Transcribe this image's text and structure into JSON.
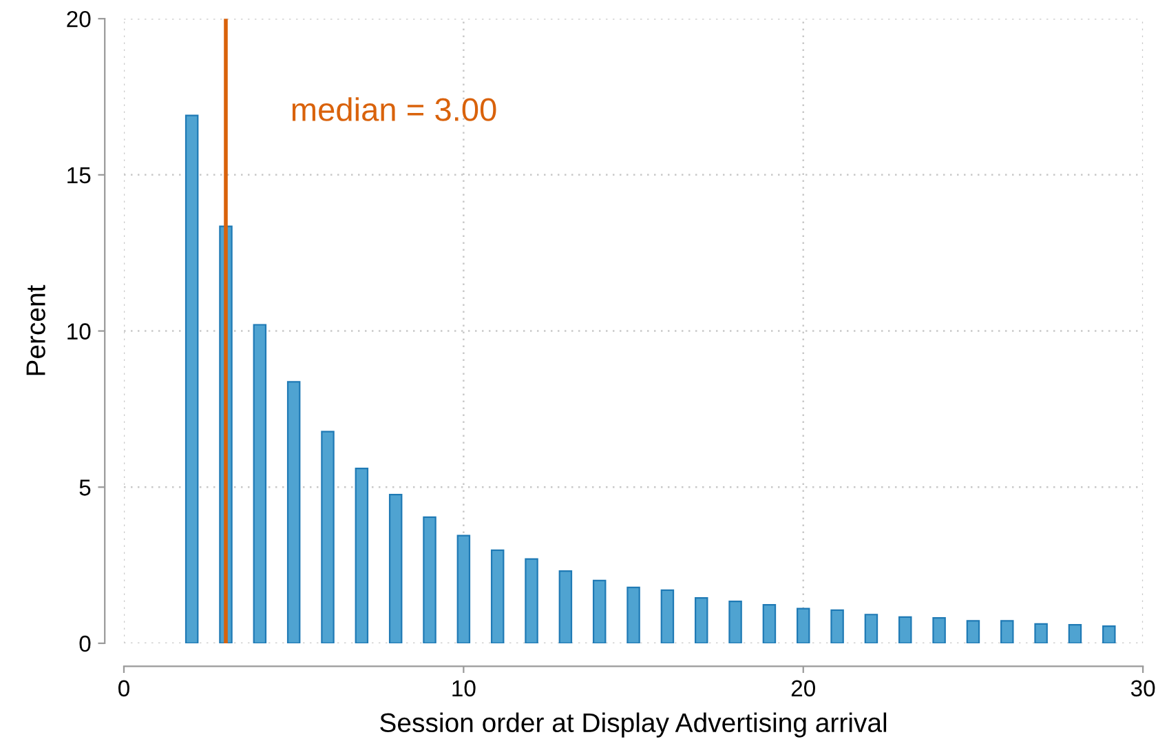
{
  "chart_data": {
    "type": "bar",
    "xlabel": "Session order at Display Advertising arrival",
    "ylabel": "Percent",
    "x": [
      2,
      3,
      4,
      5,
      6,
      7,
      8,
      9,
      10,
      11,
      12,
      13,
      14,
      15,
      16,
      17,
      18,
      19,
      20,
      21,
      22,
      23,
      24,
      25,
      26,
      27,
      28,
      29
    ],
    "values": [
      16.9,
      13.35,
      10.2,
      8.37,
      6.78,
      5.6,
      4.76,
      4.04,
      3.45,
      2.98,
      2.7,
      2.31,
      2.01,
      1.79,
      1.7,
      1.45,
      1.34,
      1.23,
      1.11,
      1.06,
      0.92,
      0.84,
      0.81,
      0.72,
      0.72,
      0.62,
      0.59,
      0.55
    ],
    "color": "#4fa3d1",
    "xlim": [
      0,
      30
    ],
    "xticks": [
      0,
      10,
      20,
      30
    ],
    "ylim": [
      0,
      20
    ],
    "yticks": [
      0,
      5,
      10,
      15,
      20
    ],
    "grid": true,
    "ref_lines": [
      {
        "axis": "x",
        "value": 3,
        "label": "median = 3.00",
        "color": "#d9620b",
        "line_style": "solid"
      }
    ]
  }
}
